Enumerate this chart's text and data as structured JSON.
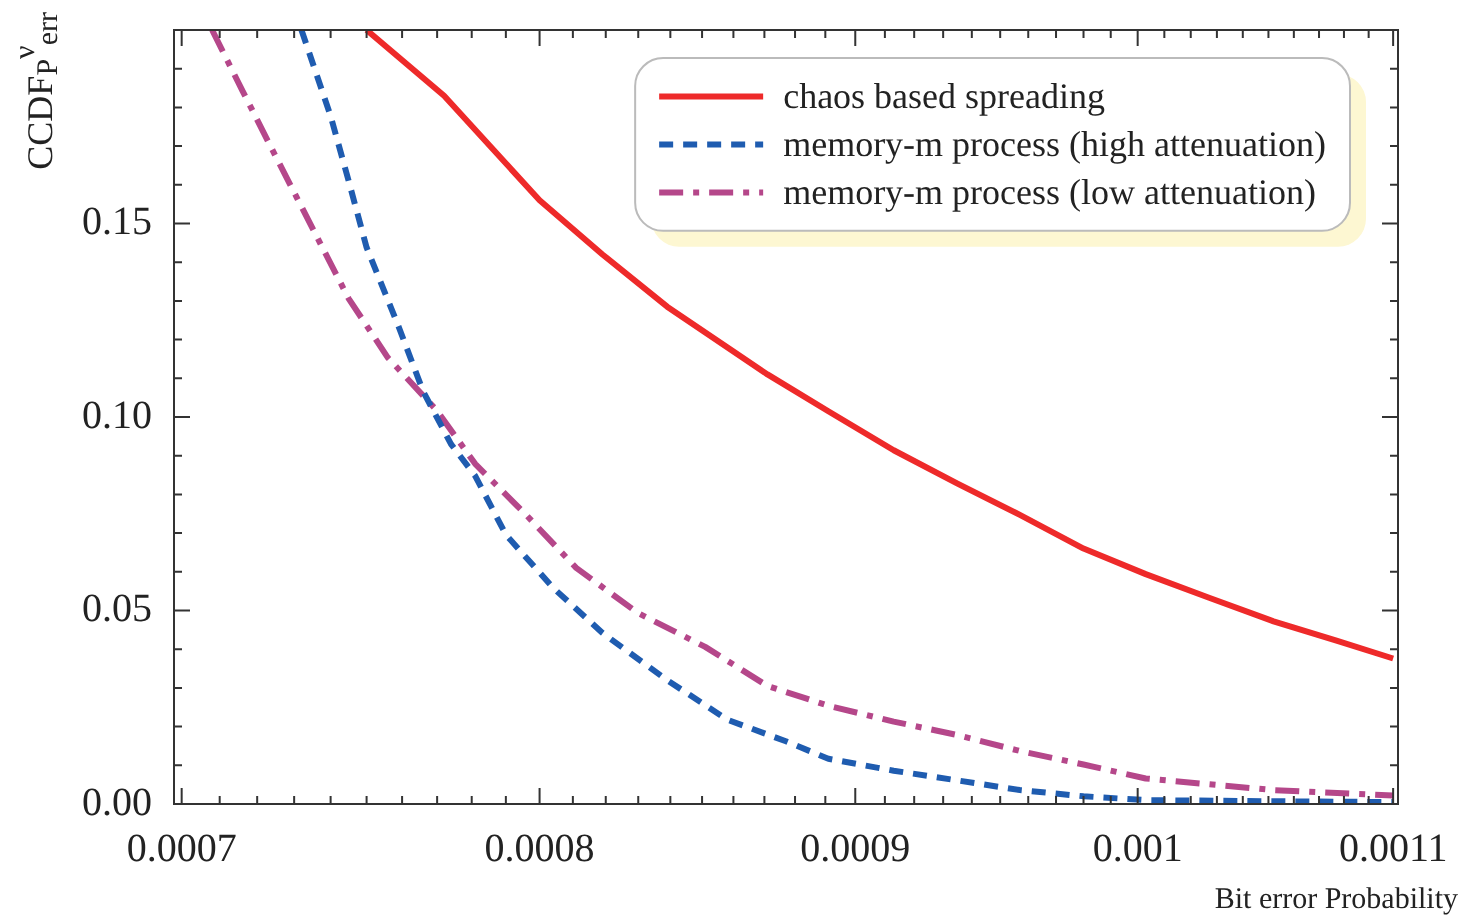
{
  "chart_data": {
    "type": "line",
    "xlabel": "Bit error Probability",
    "ylabel": "CCDF$_{P}$$^{ν}$$_{err}$",
    "log": "x",
    "marker": "none",
    "legend": "top right",
    "grid": false,
    "xlim": [
      0.000698,
      0.001102
    ],
    "xticks": [
      {
        "value": 0.0007,
        "label": "0.0007"
      },
      {
        "value": 0.00071,
        "label": null
      },
      {
        "value": 0.00072,
        "label": null
      },
      {
        "value": 0.00073,
        "label": null
      },
      {
        "value": 0.00074,
        "label": null
      },
      {
        "value": 0.00075,
        "label": null
      },
      {
        "value": 0.00076,
        "label": null
      },
      {
        "value": 0.00077,
        "label": null
      },
      {
        "value": 0.00078,
        "label": null
      },
      {
        "value": 0.00079,
        "label": null
      },
      {
        "value": 0.0008,
        "label": "0.0008"
      },
      {
        "value": 0.00081,
        "label": null
      },
      {
        "value": 0.00082,
        "label": null
      },
      {
        "value": 0.00083,
        "label": null
      },
      {
        "value": 0.00084,
        "label": null
      },
      {
        "value": 0.00085,
        "label": null
      },
      {
        "value": 0.00086,
        "label": null
      },
      {
        "value": 0.00087,
        "label": null
      },
      {
        "value": 0.00088,
        "label": null
      },
      {
        "value": 0.00089,
        "label": null
      },
      {
        "value": 0.0009,
        "label": "0.0009"
      },
      {
        "value": 0.00091,
        "label": null
      },
      {
        "value": 0.00092,
        "label": null
      },
      {
        "value": 0.00093,
        "label": null
      },
      {
        "value": 0.00094,
        "label": null
      },
      {
        "value": 0.00095,
        "label": null
      },
      {
        "value": 0.00096,
        "label": null
      },
      {
        "value": 0.00097,
        "label": null
      },
      {
        "value": 0.00098,
        "label": null
      },
      {
        "value": 0.00099,
        "label": null
      },
      {
        "value": 0.001,
        "label": "0.001"
      },
      {
        "value": 0.00101,
        "label": null
      },
      {
        "value": 0.00102,
        "label": null
      },
      {
        "value": 0.00103,
        "label": null
      },
      {
        "value": 0.00104,
        "label": null
      },
      {
        "value": 0.00105,
        "label": null
      },
      {
        "value": 0.00106,
        "label": null
      },
      {
        "value": 0.00107,
        "label": null
      },
      {
        "value": 0.00108,
        "label": null
      },
      {
        "value": 0.00109,
        "label": null
      },
      {
        "value": 0.0011,
        "label": "0.0011"
      }
    ],
    "ylim": [
      0,
      0.2
    ],
    "yticks": [
      {
        "value": 0,
        "label": "0.00"
      },
      {
        "value": 0.01,
        "label": null
      },
      {
        "value": 0.02,
        "label": null
      },
      {
        "value": 0.03,
        "label": null
      },
      {
        "value": 0.04,
        "label": null
      },
      {
        "value": 0.05,
        "label": "0.05"
      },
      {
        "value": 0.06,
        "label": null
      },
      {
        "value": 0.07,
        "label": null
      },
      {
        "value": 0.08,
        "label": null
      },
      {
        "value": 0.09,
        "label": null
      },
      {
        "value": 0.1,
        "label": "0.10"
      },
      {
        "value": 0.11,
        "label": null
      },
      {
        "value": 0.12,
        "label": null
      },
      {
        "value": 0.13,
        "label": null
      },
      {
        "value": 0.14,
        "label": null
      },
      {
        "value": 0.15,
        "label": "0.15"
      },
      {
        "value": 0.16,
        "label": null
      },
      {
        "value": 0.17,
        "label": null
      },
      {
        "value": 0.18,
        "label": null
      },
      {
        "value": 0.19,
        "label": null
      }
    ],
    "series": [
      {
        "name": "chaos based spreading",
        "color": "#ee2a2a",
        "line_style": "solid",
        "x": [
          0.00075,
          0.000772,
          0.0008,
          0.000819,
          0.000839,
          0.000858,
          0.000871,
          0.000891,
          0.000913,
          0.000935,
          0.000957,
          0.00098,
          0.001003,
          0.001027,
          0.001052,
          0.001077,
          0.0011
        ],
        "values": [
          0.2,
          0.183,
          0.156,
          0.142,
          0.1285,
          0.118,
          0.111,
          0.1015,
          0.0914,
          0.0828,
          0.0747,
          0.066,
          0.0594,
          0.0533,
          0.0472,
          0.0422,
          0.0376
        ]
      },
      {
        "name": "memory-m process (high attenuation)",
        "color": "#1f5cb0",
        "line_style": "dashed",
        "x": [
          0.000732,
          0.00074,
          0.000745,
          0.00075,
          0.000759,
          0.000766,
          0.000774,
          0.000781,
          0.00079,
          0.000804,
          0.000819,
          0.000839,
          0.000858,
          0.000877,
          0.000891,
          0.000913,
          0.000935,
          0.000957,
          0.00098,
          0.001003,
          0.001052,
          0.0011
        ],
        "values": [
          0.2,
          0.1778,
          0.161,
          0.1438,
          0.1234,
          0.1066,
          0.093,
          0.0848,
          0.0696,
          0.0559,
          0.0442,
          0.032,
          0.0218,
          0.0162,
          0.0117,
          0.0086,
          0.0061,
          0.0036,
          0.002,
          0.001,
          0.0007,
          0.0005
        ]
      },
      {
        "name": "memory-m process (low attenuation)",
        "color": "#b5478a",
        "line_style": "dashdot",
        "x": [
          0.000708,
          0.000716,
          0.000724,
          0.000735,
          0.000745,
          0.000756,
          0.00077,
          0.000781,
          0.000796,
          0.000811,
          0.00083,
          0.000851,
          0.000871,
          0.000891,
          0.000913,
          0.000935,
          0.000957,
          0.00098,
          0.001003,
          0.001027,
          0.001052,
          0.0011
        ],
        "values": [
          0.2,
          0.1844,
          0.1692,
          0.1488,
          0.1306,
          0.1153,
          0.1016,
          0.0879,
          0.0747,
          0.061,
          0.0493,
          0.0406,
          0.0305,
          0.0254,
          0.0213,
          0.0178,
          0.0137,
          0.0102,
          0.0066,
          0.0051,
          0.0036,
          0.0022
        ]
      }
    ]
  }
}
